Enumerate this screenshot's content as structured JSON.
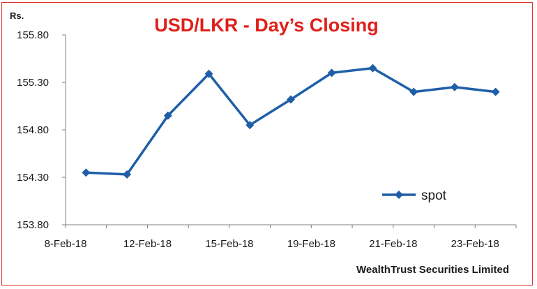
{
  "chart_data": {
    "type": "line",
    "title": "USD/LKR - Day’s Closing",
    "ylabel": "Rs.",
    "xlabel": "",
    "ylim": [
      153.8,
      155.8
    ],
    "yticks": [
      "155.80",
      "155.30",
      "154.80",
      "154.30",
      "153.80"
    ],
    "x_tick_labels": [
      "8-Feb-18",
      "12-Feb-18",
      "15-Feb-18",
      "19-Feb-18",
      "21-Feb-18",
      "23-Feb-18"
    ],
    "grid": false,
    "legend_position": "lower-right",
    "series": [
      {
        "name": "spot",
        "color": "#1f5fa8",
        "values": [
          154.35,
          154.33,
          154.95,
          155.39,
          154.85,
          155.12,
          155.4,
          155.45,
          155.2,
          155.25,
          155.2
        ]
      }
    ],
    "footer": "WealthTrust Securities Limited"
  }
}
